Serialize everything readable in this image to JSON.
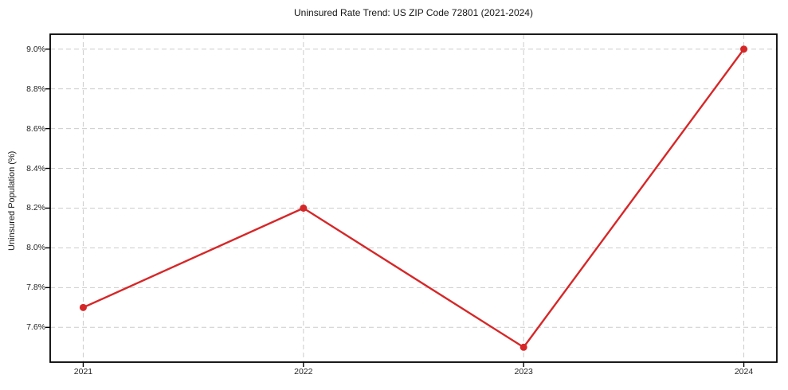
{
  "chart": {
    "title": "Uninsured Rate Trend: US ZIP Code 72801 (2021-2024)",
    "ylabel": "Uninsured Population (%)"
  },
  "chart_data": {
    "type": "line",
    "title": "Uninsured Rate Trend: US ZIP Code 72801 (2021-2024)",
    "xlabel": "",
    "ylabel": "Uninsured Population (%)",
    "categories": [
      "2021",
      "2022",
      "2023",
      "2024"
    ],
    "x": [
      2021,
      2022,
      2023,
      2024
    ],
    "values": [
      7.7,
      8.2,
      7.5,
      9.0
    ],
    "xlim": [
      2020.85,
      2024.15
    ],
    "ylim": [
      7.425,
      9.075
    ],
    "xticks": [
      2021,
      2022,
      2023,
      2024
    ],
    "xtick_labels": [
      "2021",
      "2022",
      "2023",
      "2024"
    ],
    "yticks": [
      7.6,
      7.8,
      8.0,
      8.2,
      8.4,
      8.6,
      8.8,
      9.0
    ],
    "ytick_labels": [
      "7.6%",
      "7.8%",
      "8.0%",
      "8.2%",
      "8.4%",
      "8.6%",
      "8.8%",
      "9.0%"
    ],
    "grid": true,
    "legend": false,
    "marker": "circle",
    "line_color": "#d62728",
    "grid_color": "#cccccc",
    "spine_color": "#000000",
    "tick_color": "#000000"
  }
}
